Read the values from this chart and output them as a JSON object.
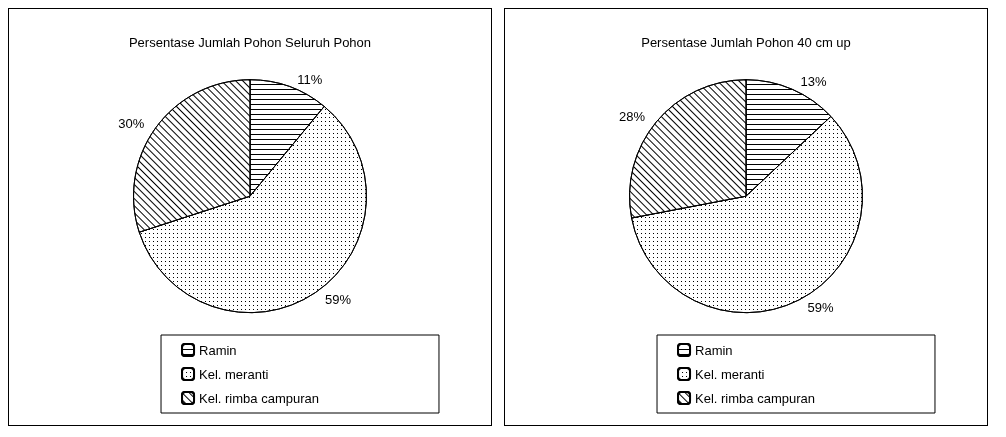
{
  "chart_data": [
    {
      "type": "pie",
      "title": "Persentase Jumlah Pohon Seluruh Pohon",
      "categories": [
        "Ramin",
        "Kel. meranti",
        "Kel. rimba campuran"
      ],
      "values": [
        11,
        59,
        30
      ],
      "value_labels": [
        "11%",
        "59%",
        "30%"
      ],
      "colors": [
        "#000000",
        "#000000",
        "#000000"
      ],
      "legend": "bottom"
    },
    {
      "type": "pie",
      "title": "Persentase Jumlah Pohon 40 cm up",
      "categories": [
        "Ramin",
        "Kel. meranti",
        "Kel. rimba campuran"
      ],
      "values": [
        13,
        59,
        28
      ],
      "value_labels": [
        "13%",
        "59%",
        "28%"
      ],
      "colors": [
        "#000000",
        "#000000",
        "#000000"
      ],
      "legend": "bottom"
    }
  ]
}
